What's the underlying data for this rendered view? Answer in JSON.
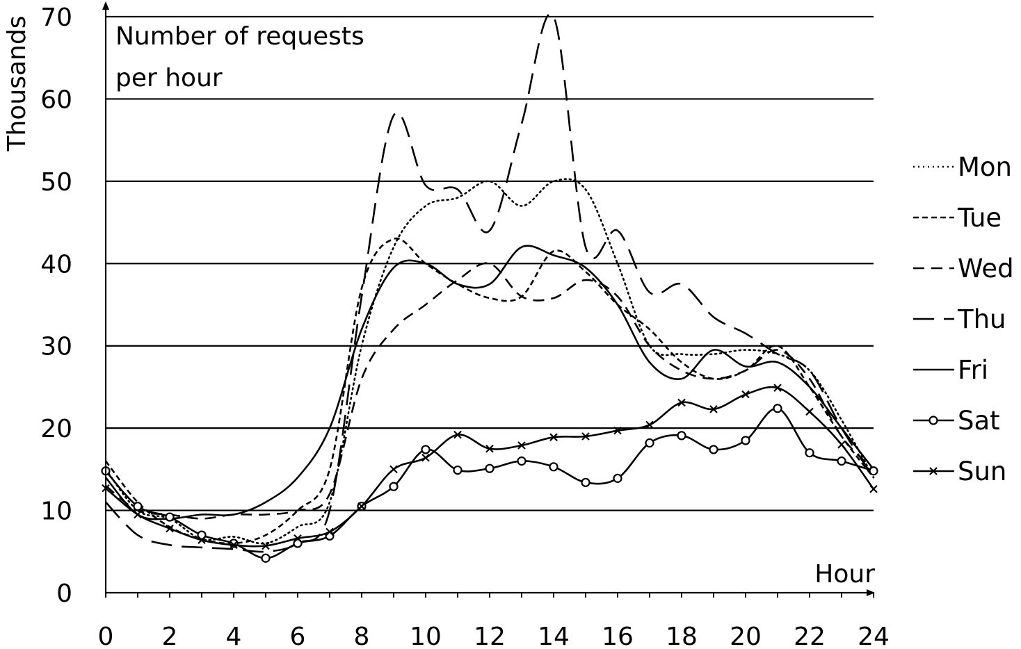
{
  "chart_data": {
    "type": "line",
    "title_lines": [
      "Number of requests",
      "per hour"
    ],
    "xlabel": "Hour",
    "ylabel": "Thousands",
    "xlim": [
      0,
      24
    ],
    "ylim": [
      0,
      70
    ],
    "xticks": [
      0,
      2,
      4,
      6,
      8,
      10,
      12,
      14,
      16,
      18,
      20,
      22,
      24
    ],
    "yticks": [
      0,
      10,
      20,
      30,
      40,
      50,
      60,
      70
    ],
    "grid": "horizontal",
    "legend_position": "right",
    "x": [
      0,
      1,
      2,
      3,
      4,
      5,
      6,
      7,
      8,
      9,
      10,
      11,
      12,
      13,
      14,
      15,
      16,
      17,
      18,
      19,
      20,
      21,
      22,
      23,
      24
    ],
    "series": [
      {
        "name": "Mon",
        "style": "dotted",
        "marker": "none",
        "values": [
          15,
          10,
          9,
          6.5,
          6.8,
          6,
          8,
          11,
          30,
          42,
          47,
          48,
          50,
          47,
          50,
          49,
          40,
          30,
          29,
          29,
          29.5,
          29,
          27,
          21,
          14
        ]
      },
      {
        "name": "Tue",
        "style": "short-dash",
        "marker": "none",
        "values": [
          16,
          11,
          8,
          6.5,
          6,
          7,
          10,
          15,
          37,
          43,
          40,
          37.5,
          35.8,
          36,
          41.5,
          39,
          35,
          32,
          28,
          26,
          27,
          30,
          25,
          19,
          14
        ]
      },
      {
        "name": "Wed",
        "style": "medium-dash",
        "marker": "none",
        "values": [
          13,
          10,
          9.5,
          9,
          9.5,
          9.5,
          10,
          12,
          26,
          32,
          35,
          38,
          40,
          36,
          35.8,
          38,
          36,
          30,
          27,
          26,
          27,
          29.5,
          26,
          19,
          15
        ]
      },
      {
        "name": "Thu",
        "style": "long-dash",
        "marker": "none",
        "values": [
          11,
          7,
          5.8,
          5.5,
          5.3,
          5,
          6,
          10,
          36,
          58,
          49.5,
          49,
          44,
          57,
          70,
          42,
          44,
          36.5,
          37.5,
          33.5,
          31.5,
          29,
          27,
          20,
          14
        ]
      },
      {
        "name": "Fri",
        "style": "solid",
        "marker": "none",
        "values": [
          14,
          9.5,
          9,
          9.5,
          9.5,
          11,
          14,
          20,
          32,
          39.5,
          40,
          37.5,
          37.5,
          42,
          41,
          39.5,
          35,
          28,
          26,
          29.5,
          27.5,
          28,
          25,
          20,
          15
        ]
      },
      {
        "name": "Sat",
        "style": "solid",
        "marker": "circle",
        "values": [
          14.8,
          10.5,
          9.2,
          7,
          6,
          4.2,
          6,
          6.9,
          10.5,
          12.9,
          17.4,
          14.9,
          15.1,
          16,
          15.3,
          13.4,
          13.9,
          18.2,
          19.1,
          17.4,
          18.5,
          22.4,
          17,
          16,
          14.8
        ]
      },
      {
        "name": "Sun",
        "style": "solid",
        "marker": "x",
        "values": [
          12.7,
          9.5,
          7.8,
          6.4,
          5.8,
          5.7,
          6.6,
          7.4,
          10.5,
          15,
          16.4,
          19.2,
          17.5,
          17.9,
          18.9,
          19,
          19.7,
          20.4,
          23.1,
          22.3,
          24.1,
          24.9,
          22,
          18,
          12.6
        ]
      }
    ]
  }
}
